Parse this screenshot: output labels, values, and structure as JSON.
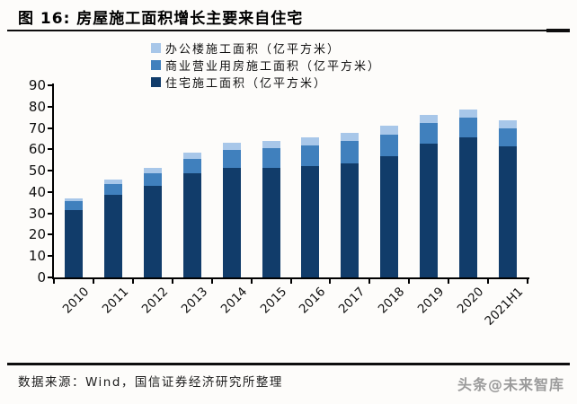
{
  "header": {
    "title": "图 16: 房屋施工面积增长主要来自住宅"
  },
  "chart_data": {
    "type": "bar",
    "stacked": true,
    "title": "房屋施工面积增长主要来自住宅",
    "xlabel": "",
    "ylabel": "",
    "ylim": [
      0,
      90
    ],
    "ytick_step": 10,
    "grid": false,
    "legend_position": "top-center",
    "categories": [
      "2010",
      "2011",
      "2012",
      "2013",
      "2014",
      "2015",
      "2016",
      "2017",
      "2018",
      "2019",
      "2020",
      "2021H1"
    ],
    "series": [
      {
        "name": "住宅施工面积（亿平方米）",
        "color": "#113c6a",
        "values": [
          31.5,
          38.8,
          42.9,
          48.6,
          51.5,
          51.2,
          52.1,
          53.6,
          56.9,
          62.7,
          65.6,
          61.5
        ]
      },
      {
        "name": "商业营业用房施工面积（亿平方米）",
        "color": "#4080bd",
        "values": [
          4.2,
          5.1,
          6.0,
          7.1,
          8.3,
          9.2,
          9.9,
          10.4,
          10.1,
          9.8,
          9.3,
          8.5
        ]
      },
      {
        "name": "办公楼施工面积（亿平方米）",
        "color": "#a8c7e9",
        "values": [
          1.5,
          1.9,
          2.3,
          2.8,
          3.2,
          3.6,
          3.8,
          3.9,
          3.9,
          3.8,
          3.7,
          3.4
        ]
      }
    ],
    "legend_order": [
      "办公楼施工面积（亿平方米）",
      "商业营业用房施工面积（亿平方米）",
      "住宅施工面积（亿平方米）"
    ]
  },
  "footer": {
    "source": "数据来源：Wind，国信证券经济研究所整理"
  },
  "watermark": "头条@未来智库"
}
